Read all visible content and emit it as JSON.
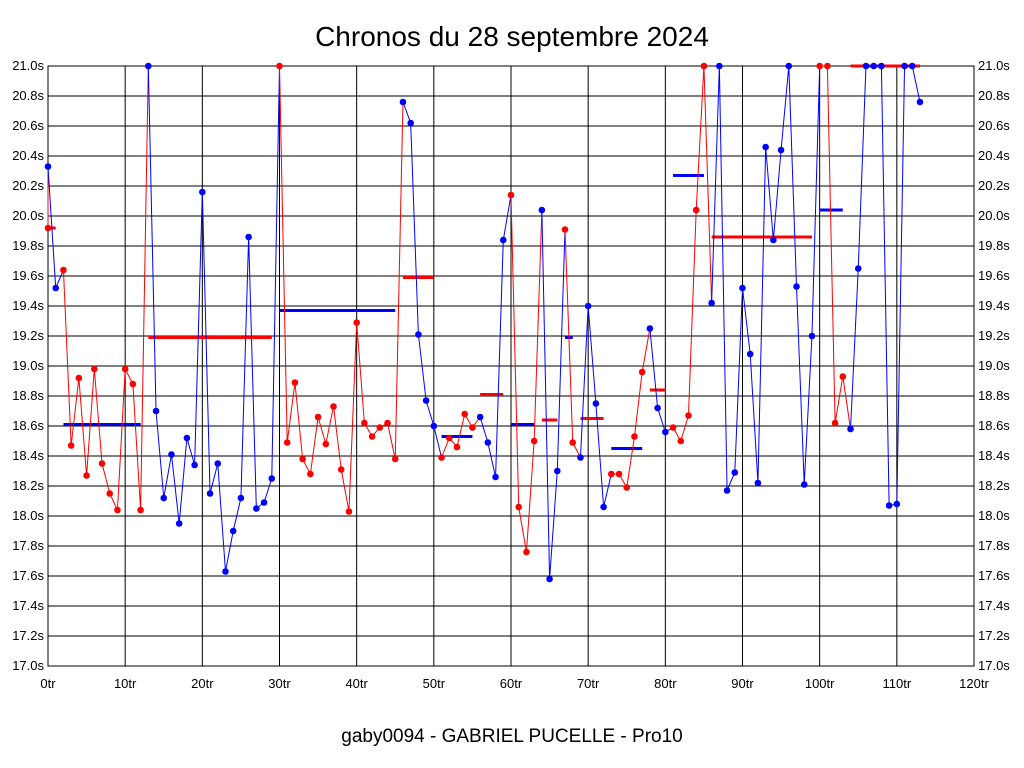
{
  "chart_data": {
    "type": "line",
    "title": "Chronos du 28 septembre 2024",
    "footer": "gaby0094 - GABRIEL PUCELLE - Pro10",
    "xlim": [
      0,
      120
    ],
    "ylim": [
      17.0,
      21.0
    ],
    "x_ticks": [
      0,
      10,
      20,
      30,
      40,
      50,
      60,
      70,
      80,
      90,
      100,
      110,
      120
    ],
    "x_tick_labels": [
      "0tr",
      "10tr",
      "20tr",
      "30tr",
      "40tr",
      "50tr",
      "60tr",
      "70tr",
      "80tr",
      "90tr",
      "100tr",
      "110tr",
      "120tr"
    ],
    "y_ticks": [
      17.0,
      17.2,
      17.4,
      17.6,
      17.8,
      18.0,
      18.2,
      18.4,
      18.6,
      18.8,
      19.0,
      19.2,
      19.4,
      19.6,
      19.8,
      20.0,
      20.2,
      20.4,
      20.6,
      20.8,
      21.0
    ],
    "y_tick_labels": [
      "17.0s",
      "17.2s",
      "17.4s",
      "17.6s",
      "17.8s",
      "18.0s",
      "18.2s",
      "18.4s",
      "18.6s",
      "18.8s",
      "19.0s",
      "19.2s",
      "19.4s",
      "19.6s",
      "19.8s",
      "20.0s",
      "20.2s",
      "20.4s",
      "20.6s",
      "20.8s",
      "21.0s"
    ],
    "grid": true,
    "colors": {
      "red": "#ff0000",
      "blue": "#0000ff"
    },
    "segments": [
      {
        "color": "red",
        "points": [
          [
            0,
            19.92
          ]
        ]
      },
      {
        "color": "blue",
        "points": [
          [
            0,
            20.33
          ],
          [
            1,
            19.52
          ]
        ]
      },
      {
        "color": "red",
        "points": [
          [
            2,
            19.64
          ],
          [
            3,
            18.47
          ],
          [
            4,
            18.92
          ],
          [
            5,
            18.27
          ],
          [
            6,
            18.98
          ],
          [
            7,
            18.35
          ],
          [
            8,
            18.15
          ],
          [
            9,
            18.04
          ],
          [
            10,
            18.98
          ],
          [
            11,
            18.88
          ],
          [
            12,
            18.04
          ]
        ]
      },
      {
        "color": "blue",
        "points": [
          [
            13,
            21.0
          ],
          [
            14,
            18.7
          ],
          [
            15,
            18.12
          ],
          [
            16,
            18.41
          ],
          [
            17,
            17.95
          ],
          [
            18,
            18.52
          ],
          [
            19,
            18.34
          ],
          [
            20,
            20.16
          ],
          [
            21,
            18.15
          ],
          [
            22,
            18.35
          ],
          [
            23,
            17.63
          ],
          [
            24,
            17.9
          ],
          [
            25,
            18.12
          ],
          [
            26,
            19.86
          ],
          [
            27,
            18.05
          ],
          [
            28,
            18.09
          ],
          [
            29,
            18.25
          ]
        ]
      },
      {
        "color": "red",
        "points": [
          [
            30,
            21.0
          ],
          [
            31,
            18.49
          ],
          [
            32,
            18.89
          ],
          [
            33,
            18.38
          ],
          [
            34,
            18.28
          ],
          [
            35,
            18.66
          ],
          [
            36,
            18.48
          ],
          [
            37,
            18.73
          ],
          [
            38,
            18.31
          ],
          [
            39,
            18.03
          ],
          [
            40,
            19.29
          ],
          [
            41,
            18.62
          ],
          [
            42,
            18.53
          ],
          [
            43,
            18.59
          ],
          [
            44,
            18.62
          ],
          [
            45,
            18.38
          ]
        ]
      },
      {
        "color": "blue",
        "points": [
          [
            46,
            20.76
          ],
          [
            47,
            20.62
          ],
          [
            48,
            19.21
          ],
          [
            49,
            18.77
          ],
          [
            50,
            18.6
          ]
        ]
      },
      {
        "color": "red",
        "points": [
          [
            51,
            18.39
          ],
          [
            52,
            18.52
          ],
          [
            53,
            18.46
          ],
          [
            54,
            18.68
          ],
          [
            55,
            18.59
          ]
        ]
      },
      {
        "color": "blue",
        "points": [
          [
            56,
            18.66
          ],
          [
            57,
            18.49
          ],
          [
            58,
            18.26
          ],
          [
            59,
            19.84
          ]
        ]
      },
      {
        "color": "red",
        "points": [
          [
            60,
            20.14
          ],
          [
            61,
            18.06
          ],
          [
            62,
            17.76
          ],
          [
            63,
            18.5
          ]
        ]
      },
      {
        "color": "blue",
        "points": [
          [
            64,
            20.04
          ],
          [
            65,
            17.58
          ],
          [
            66,
            18.3
          ]
        ]
      },
      {
        "color": "red",
        "points": [
          [
            67,
            19.91
          ],
          [
            68,
            18.49
          ]
        ]
      },
      {
        "color": "blue",
        "points": [
          [
            69,
            18.39
          ],
          [
            70,
            19.4
          ],
          [
            71,
            18.75
          ],
          [
            72,
            18.06
          ]
        ]
      },
      {
        "color": "red",
        "points": [
          [
            73,
            18.28
          ],
          [
            74,
            18.28
          ],
          [
            75,
            18.19
          ],
          [
            76,
            18.53
          ],
          [
            77,
            18.96
          ]
        ]
      },
      {
        "color": "blue",
        "points": [
          [
            78,
            19.25
          ],
          [
            79,
            18.72
          ],
          [
            80,
            18.56
          ]
        ]
      },
      {
        "color": "red",
        "points": [
          [
            81,
            18.59
          ],
          [
            82,
            18.5
          ],
          [
            83,
            18.67
          ],
          [
            84,
            20.04
          ],
          [
            85,
            21.0
          ]
        ]
      },
      {
        "color": "blue",
        "points": [
          [
            86,
            19.42
          ],
          [
            87,
            21.0
          ],
          [
            88,
            18.17
          ],
          [
            89,
            18.29
          ],
          [
            90,
            19.52
          ],
          [
            91,
            19.08
          ],
          [
            92,
            18.22
          ],
          [
            93,
            20.46
          ],
          [
            94,
            19.84
          ],
          [
            95,
            20.44
          ],
          [
            96,
            21.0
          ],
          [
            97,
            19.53
          ],
          [
            98,
            18.21
          ],
          [
            99,
            19.2
          ]
        ]
      },
      {
        "color": "red",
        "points": [
          [
            100,
            21.0
          ],
          [
            101,
            21.0
          ],
          [
            102,
            18.62
          ],
          [
            103,
            18.93
          ]
        ]
      },
      {
        "color": "blue",
        "points": [
          [
            104,
            18.58
          ],
          [
            105,
            19.65
          ],
          [
            106,
            21.0
          ],
          [
            107,
            21.0
          ],
          [
            108,
            21.0
          ],
          [
            109,
            18.07
          ],
          [
            110,
            18.08
          ],
          [
            111,
            21.0
          ],
          [
            112,
            21.0
          ],
          [
            113,
            20.76
          ]
        ]
      }
    ],
    "averages": [
      {
        "color": "red",
        "x": [
          0,
          1
        ],
        "y": 19.92
      },
      {
        "color": "blue",
        "x": [
          2,
          12
        ],
        "y": 18.61
      },
      {
        "color": "red",
        "x": [
          13,
          29
        ],
        "y": 19.19
      },
      {
        "color": "blue",
        "x": [
          30,
          45
        ],
        "y": 19.37
      },
      {
        "color": "red",
        "x": [
          46,
          50
        ],
        "y": 19.59
      },
      {
        "color": "blue",
        "x": [
          51,
          55
        ],
        "y": 18.53
      },
      {
        "color": "red",
        "x": [
          56,
          59
        ],
        "y": 18.81
      },
      {
        "color": "blue",
        "x": [
          60,
          63
        ],
        "y": 18.61
      },
      {
        "color": "red",
        "x": [
          64,
          66
        ],
        "y": 18.64
      },
      {
        "color": "blue",
        "x": [
          67,
          68
        ],
        "y": 19.19
      },
      {
        "color": "red",
        "x": [
          69,
          72
        ],
        "y": 18.65
      },
      {
        "color": "blue",
        "x": [
          73,
          77
        ],
        "y": 18.45
      },
      {
        "color": "red",
        "x": [
          78,
          80
        ],
        "y": 18.84
      },
      {
        "color": "blue",
        "x": [
          81,
          85
        ],
        "y": 20.27
      },
      {
        "color": "red",
        "x": [
          86,
          99
        ],
        "y": 19.86
      },
      {
        "color": "blue",
        "x": [
          100,
          103
        ],
        "y": 20.04
      },
      {
        "color": "red",
        "x": [
          104,
          113
        ],
        "y": 21.0
      }
    ]
  }
}
